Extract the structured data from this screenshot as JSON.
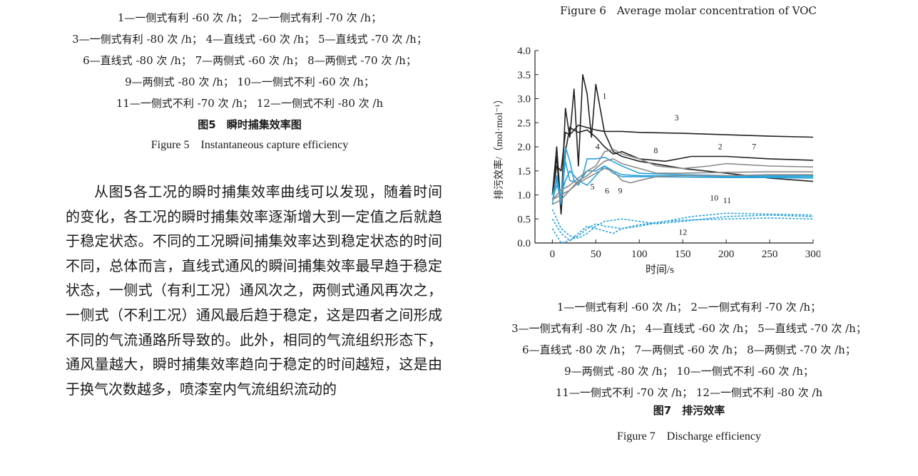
{
  "fig5": {
    "legend": [
      "1—一侧式有利 -60 次 /h； 2—一侧式有利 -70 次 /h；",
      "3—一侧式有利 -80 次 /h； 4—直线式 -60 次 /h； 5—直线式 -70 次 /h；",
      "6—直线式 -80 次 /h； 7—两侧式 -60 次 /h； 8—两侧式 -70 次 /h；",
      "9—两侧式 -80 次 /h； 10—一侧式不利 -60 次 /h；",
      "11—一侧式不利 -70 次 /h； 12—一侧式不利 -80 次 /h"
    ],
    "caption_cn": "图5　瞬时捕集效率图",
    "caption_en": "Figure 5　Instantaneous capture efficiency"
  },
  "body_text": "从图5各工况的瞬时捕集效率曲线可以发现，随着时间的变化，各工况的瞬时捕集效率逐渐增大到一定值之后就趋于稳定状态。不同的工况瞬间捕集效率达到稳定状态的时间不同，总体而言，直线式通风的瞬间捕集效率最早趋于稳定状态，一侧式（有利工况）通风次之，两侧式通风再次之，一侧式（不利工况）通风最后趋于稳定，这是四者之间形成不同的气流通路所导致的。此外，相同的气流组织形态下，通风量越大，瞬时捕集效率趋向于稳定的时间越短，这是由于换气次数越多，喷漆室内气流组织流动的",
  "fig6": {
    "caption_en": "Figure 6　Average molar concentration of VOC"
  },
  "fig7": {
    "legend": [
      "1—一侧式有利 -60 次 /h； 2—一侧式有利 -70 次 /h；",
      "3—一侧式有利 -80 次 /h； 4—直线式 -60 次 /h； 5—直线式 -70 次 /h；",
      "6—直线式 -80 次 /h； 7—两侧式 -60 次 /h； 8—两侧式 -70 次 /h；",
      "9—两侧式 -80 次 /h； 10—一侧式不利 -60 次 /h；",
      "11—一侧式不利 -70 次 /h； 12—一侧式不利 -80 次 /h"
    ],
    "caption_cn": "图7　排污效率",
    "caption_en": "Figure 7　Discharge efficiency"
  },
  "colors": {
    "dark": "#222222",
    "gray": "#8a8a8a",
    "blue": "#29a3dc"
  },
  "chart_data": {
    "type": "line",
    "title": "",
    "xlabel": "时间/s",
    "ylabel": "排污效率/（mol·mol⁻¹）",
    "xlim": [
      -20,
      300
    ],
    "ylim": [
      0,
      4.0
    ],
    "xticks": [
      "0",
      "50",
      "100",
      "150",
      "200",
      "250",
      "300"
    ],
    "yticks": [
      "0.0",
      "0.5",
      "1.0",
      "1.5",
      "2.0",
      "2.5",
      "3.0",
      "3.5",
      "4.0"
    ],
    "series": [
      {
        "name": "1",
        "color": "dark",
        "dash": false,
        "x": [
          0,
          5,
          10,
          15,
          20,
          25,
          30,
          35,
          40,
          45,
          50,
          55,
          60,
          70,
          80,
          100,
          150,
          200,
          250,
          300
        ],
        "y": [
          1.0,
          2.0,
          0.7,
          2.8,
          2.2,
          3.2,
          1.6,
          3.5,
          3.1,
          2.2,
          3.3,
          2.8,
          2.3,
          1.9,
          1.8,
          1.7,
          1.55,
          1.45,
          1.35,
          1.28
        ]
      },
      {
        "name": "2",
        "color": "dark",
        "dash": false,
        "x": [
          0,
          5,
          10,
          15,
          20,
          30,
          40,
          50,
          60,
          70,
          80,
          100,
          130,
          160,
          200,
          250,
          300
        ],
        "y": [
          1.0,
          1.8,
          0.6,
          1.9,
          2.4,
          2.3,
          2.35,
          2.2,
          2.0,
          1.85,
          1.9,
          1.75,
          1.7,
          1.8,
          1.8,
          1.75,
          1.72
        ]
      },
      {
        "name": "3",
        "color": "dark",
        "dash": false,
        "x": [
          0,
          5,
          10,
          15,
          20,
          30,
          40,
          50,
          60,
          80,
          100,
          150,
          200,
          250,
          300
        ],
        "y": [
          1.0,
          1.6,
          1.5,
          2.3,
          2.25,
          2.45,
          2.4,
          2.35,
          2.32,
          2.32,
          2.3,
          2.28,
          2.25,
          2.22,
          2.2
        ]
      },
      {
        "name": "4",
        "color": "blue",
        "dash": false,
        "x": [
          0,
          5,
          10,
          15,
          20,
          25,
          30,
          35,
          40,
          50,
          60,
          80,
          100,
          150,
          200,
          250,
          300
        ],
        "y": [
          1.0,
          1.3,
          0.8,
          2.0,
          1.7,
          1.3,
          1.2,
          1.4,
          1.75,
          1.75,
          1.78,
          1.6,
          1.45,
          1.42,
          1.4,
          1.4,
          1.4
        ]
      },
      {
        "name": "5",
        "color": "blue",
        "dash": false,
        "x": [
          0,
          5,
          10,
          15,
          20,
          30,
          40,
          50,
          60,
          70,
          80,
          100,
          150,
          200,
          250,
          300
        ],
        "y": [
          0.9,
          1.2,
          1.0,
          1.3,
          1.5,
          1.3,
          1.2,
          1.4,
          1.6,
          1.45,
          1.38,
          1.38,
          1.37,
          1.36,
          1.36,
          1.35
        ]
      },
      {
        "name": "6",
        "color": "blue",
        "dash": false,
        "x": [
          0,
          5,
          10,
          15,
          20,
          30,
          40,
          50,
          60,
          70,
          80,
          100,
          150,
          200,
          250,
          300
        ],
        "y": [
          0.8,
          1.4,
          0.9,
          1.7,
          1.3,
          1.25,
          1.5,
          1.5,
          1.6,
          1.5,
          1.42,
          1.4,
          1.4,
          1.38,
          1.38,
          1.38
        ]
      },
      {
        "name": "7",
        "color": "gray",
        "dash": false,
        "x": [
          0,
          10,
          20,
          30,
          40,
          50,
          60,
          70,
          80,
          100,
          120,
          150,
          180,
          200,
          250,
          300
        ],
        "y": [
          0.9,
          1.1,
          1.2,
          1.35,
          1.5,
          1.6,
          1.9,
          1.95,
          1.85,
          1.75,
          1.6,
          1.55,
          1.6,
          1.65,
          1.6,
          1.58
        ]
      },
      {
        "name": "8",
        "color": "gray",
        "dash": false,
        "x": [
          0,
          10,
          20,
          30,
          40,
          50,
          60,
          70,
          80,
          90,
          100,
          120,
          150,
          200,
          250,
          300
        ],
        "y": [
          0.9,
          1.0,
          1.1,
          1.3,
          1.4,
          1.55,
          1.7,
          1.75,
          1.65,
          1.6,
          1.55,
          1.45,
          1.45,
          1.47,
          1.48,
          1.48
        ]
      },
      {
        "name": "9",
        "color": "gray",
        "dash": false,
        "x": [
          0,
          10,
          20,
          30,
          40,
          50,
          60,
          70,
          80,
          90,
          100,
          120,
          150,
          200,
          250,
          300
        ],
        "y": [
          0.8,
          0.9,
          1.1,
          1.25,
          1.35,
          1.45,
          1.55,
          1.5,
          1.3,
          1.25,
          1.3,
          1.38,
          1.4,
          1.4,
          1.42,
          1.42
        ]
      },
      {
        "name": "10",
        "color": "blue",
        "dash": true,
        "x": [
          0,
          10,
          20,
          30,
          40,
          50,
          60,
          80,
          100,
          120,
          150,
          200,
          250,
          300
        ],
        "y": [
          0.7,
          0.3,
          0.15,
          0.1,
          0.2,
          0.35,
          0.45,
          0.5,
          0.45,
          0.4,
          0.45,
          0.55,
          0.58,
          0.55
        ]
      },
      {
        "name": "11",
        "color": "blue",
        "dash": true,
        "x": [
          0,
          10,
          20,
          30,
          40,
          50,
          60,
          80,
          100,
          130,
          160,
          200,
          250,
          300
        ],
        "y": [
          0.5,
          0.2,
          0.05,
          0.15,
          0.3,
          0.4,
          0.35,
          0.3,
          0.35,
          0.45,
          0.55,
          0.62,
          0.6,
          0.58
        ]
      },
      {
        "name": "12",
        "color": "blue",
        "dash": true,
        "x": [
          0,
          10,
          20,
          30,
          40,
          50,
          60,
          70,
          80,
          100,
          130,
          160,
          200,
          250,
          300
        ],
        "y": [
          0.3,
          0.0,
          0.05,
          0.2,
          0.35,
          0.3,
          0.25,
          0.2,
          0.3,
          0.38,
          0.45,
          0.48,
          0.5,
          0.52,
          0.5
        ]
      }
    ],
    "curve_labels": [
      {
        "text": "1",
        "x": 60,
        "y": 3.0
      },
      {
        "text": "2",
        "x": 193,
        "y": 1.95
      },
      {
        "text": "3",
        "x": 143,
        "y": 2.55
      },
      {
        "text": "4",
        "x": 52,
        "y": 1.95
      },
      {
        "text": "5",
        "x": 46,
        "y": 1.12
      },
      {
        "text": "6",
        "x": 63,
        "y": 1.03
      },
      {
        "text": "7",
        "x": 232,
        "y": 1.95
      },
      {
        "text": "8",
        "x": 119,
        "y": 1.87
      },
      {
        "text": "9",
        "x": 78,
        "y": 1.03
      },
      {
        "text": "10",
        "x": 186,
        "y": 0.88
      },
      {
        "text": "11",
        "x": 201,
        "y": 0.83
      },
      {
        "text": "12",
        "x": 150,
        "y": 0.17
      }
    ]
  }
}
